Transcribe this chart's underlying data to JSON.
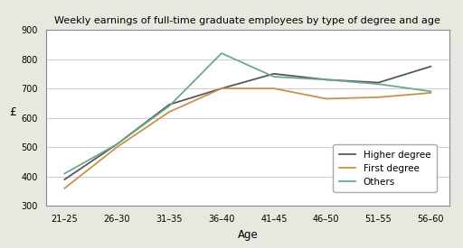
{
  "title": "Weekly earnings of full-time graduate employees by type of degree and age",
  "xlabel": "Age",
  "ylabel": "£",
  "age_labels": [
    "21–25",
    "26–30",
    "31–35",
    "36–40",
    "41–45",
    "46–50",
    "51–55",
    "56–60"
  ],
  "higher_degree": [
    390,
    510,
    645,
    700,
    750,
    730,
    720,
    775
  ],
  "first_degree": [
    360,
    500,
    620,
    700,
    700,
    665,
    670,
    685
  ],
  "others": [
    410,
    510,
    640,
    820,
    740,
    730,
    715,
    690
  ],
  "higher_color": "#555566",
  "first_color": "#c8914a",
  "others_color": "#6aaa88",
  "ylim": [
    300,
    900
  ],
  "yticks": [
    300,
    400,
    500,
    600,
    700,
    800,
    900
  ],
  "figure_bg": "#e8e8e0",
  "plot_bg": "#ffffff",
  "grid_color": "#cccccc",
  "legend_labels": [
    "Higher degree",
    "First degree",
    "Others"
  ],
  "legend_edge": "#aaaaaa",
  "spine_color": "#888888"
}
